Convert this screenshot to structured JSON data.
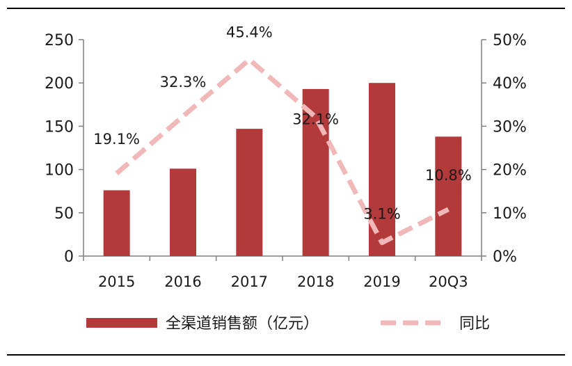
{
  "chart_data": {
    "type": "bar",
    "categories": [
      "2015",
      "2016",
      "2017",
      "2018",
      "2019",
      "20Q3"
    ],
    "series": [
      {
        "name": "全渠道销售额（亿元）",
        "type": "bar",
        "axis": "left",
        "color": "#b33a3a",
        "values": [
          76,
          101,
          147,
          193,
          200,
          138
        ]
      },
      {
        "name": "同比",
        "type": "line",
        "style": "dashed",
        "axis": "right",
        "color": "#f0b8b8",
        "values": [
          19.1,
          32.3,
          45.4,
          32.1,
          3.1,
          10.8
        ],
        "labels": [
          "19.1%",
          "32.3%",
          "45.4%",
          "32.1%",
          "3.1%",
          "10.8%"
        ]
      }
    ],
    "y_left": {
      "min": 0,
      "max": 250,
      "ticks": [
        "0",
        "50",
        "100",
        "150",
        "200",
        "250"
      ]
    },
    "y_right": {
      "min": 0,
      "max": 50,
      "ticks": [
        "0%",
        "10%",
        "20%",
        "30%",
        "40%",
        "50%"
      ]
    },
    "grid": false,
    "legend": "bottom"
  }
}
